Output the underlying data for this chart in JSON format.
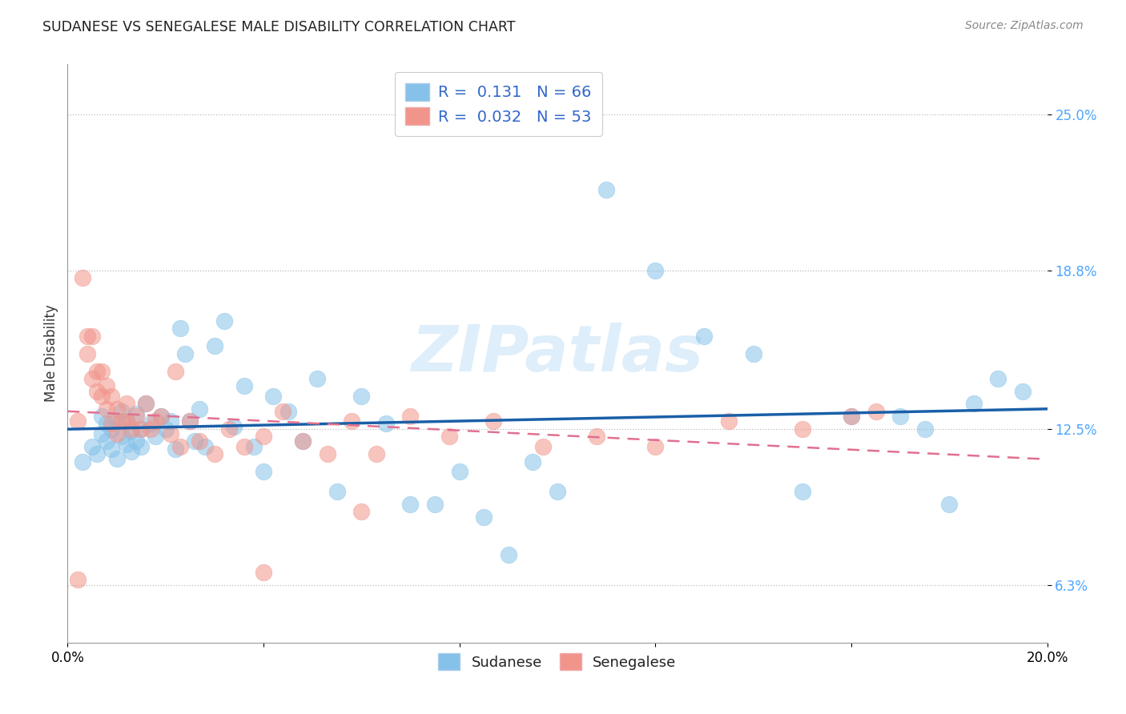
{
  "title": "SUDANESE VS SENEGALESE MALE DISABILITY CORRELATION CHART",
  "source": "Source: ZipAtlas.com",
  "ylabel": "Male Disability",
  "xlim": [
    0.0,
    0.2
  ],
  "ylim": [
    0.04,
    0.27
  ],
  "yticks": [
    0.063,
    0.125,
    0.188,
    0.25
  ],
  "ytick_labels": [
    "6.3%",
    "12.5%",
    "18.8%",
    "25.0%"
  ],
  "xticks": [
    0.0,
    0.04,
    0.08,
    0.12,
    0.16,
    0.2
  ],
  "xtick_labels": [
    "0.0%",
    "",
    "",
    "",
    "",
    "20.0%"
  ],
  "watermark": "ZIPatlas",
  "legend_R1": "0.131",
  "legend_N1": "66",
  "legend_R2": "0.032",
  "legend_N2": "53",
  "sudanese_color": "#85C1E9",
  "senegalese_color": "#F1948A",
  "trend_blue": "#1a5fa8",
  "trend_pink": "#e07090",
  "sudanese_x": [
    0.003,
    0.005,
    0.006,
    0.007,
    0.007,
    0.008,
    0.008,
    0.009,
    0.009,
    0.01,
    0.01,
    0.011,
    0.011,
    0.012,
    0.012,
    0.013,
    0.013,
    0.014,
    0.014,
    0.015,
    0.015,
    0.016,
    0.017,
    0.018,
    0.019,
    0.02,
    0.021,
    0.022,
    0.023,
    0.024,
    0.025,
    0.026,
    0.027,
    0.028,
    0.03,
    0.032,
    0.034,
    0.036,
    0.038,
    0.04,
    0.042,
    0.045,
    0.048,
    0.051,
    0.055,
    0.06,
    0.065,
    0.07,
    0.075,
    0.08,
    0.085,
    0.09,
    0.095,
    0.1,
    0.11,
    0.12,
    0.13,
    0.14,
    0.15,
    0.16,
    0.17,
    0.175,
    0.18,
    0.185,
    0.19,
    0.195
  ],
  "sudanese_y": [
    0.112,
    0.118,
    0.115,
    0.123,
    0.13,
    0.12,
    0.127,
    0.117,
    0.125,
    0.113,
    0.128,
    0.122,
    0.132,
    0.119,
    0.128,
    0.116,
    0.124,
    0.12,
    0.131,
    0.118,
    0.125,
    0.135,
    0.127,
    0.122,
    0.13,
    0.125,
    0.128,
    0.117,
    0.165,
    0.155,
    0.128,
    0.12,
    0.133,
    0.118,
    0.158,
    0.168,
    0.126,
    0.142,
    0.118,
    0.108,
    0.138,
    0.132,
    0.12,
    0.145,
    0.1,
    0.138,
    0.127,
    0.095,
    0.095,
    0.108,
    0.09,
    0.075,
    0.112,
    0.1,
    0.22,
    0.188,
    0.162,
    0.155,
    0.1,
    0.13,
    0.13,
    0.125,
    0.095,
    0.135,
    0.145,
    0.14
  ],
  "senegalese_x": [
    0.002,
    0.003,
    0.004,
    0.004,
    0.005,
    0.005,
    0.006,
    0.006,
    0.007,
    0.007,
    0.008,
    0.008,
    0.009,
    0.009,
    0.01,
    0.01,
    0.011,
    0.012,
    0.012,
    0.013,
    0.014,
    0.015,
    0.016,
    0.017,
    0.018,
    0.019,
    0.021,
    0.023,
    0.025,
    0.027,
    0.03,
    0.033,
    0.036,
    0.04,
    0.044,
    0.048,
    0.053,
    0.058,
    0.063,
    0.07,
    0.078,
    0.087,
    0.097,
    0.108,
    0.12,
    0.135,
    0.15,
    0.165,
    0.002,
    0.022,
    0.04,
    0.06,
    0.16
  ],
  "senegalese_y": [
    0.128,
    0.185,
    0.162,
    0.155,
    0.145,
    0.162,
    0.14,
    0.148,
    0.138,
    0.148,
    0.133,
    0.142,
    0.127,
    0.138,
    0.123,
    0.133,
    0.128,
    0.128,
    0.135,
    0.125,
    0.13,
    0.125,
    0.135,
    0.125,
    0.128,
    0.13,
    0.123,
    0.118,
    0.128,
    0.12,
    0.115,
    0.125,
    0.118,
    0.122,
    0.132,
    0.12,
    0.115,
    0.128,
    0.115,
    0.13,
    0.122,
    0.128,
    0.118,
    0.122,
    0.118,
    0.128,
    0.125,
    0.132,
    0.065,
    0.148,
    0.068,
    0.092,
    0.13
  ]
}
